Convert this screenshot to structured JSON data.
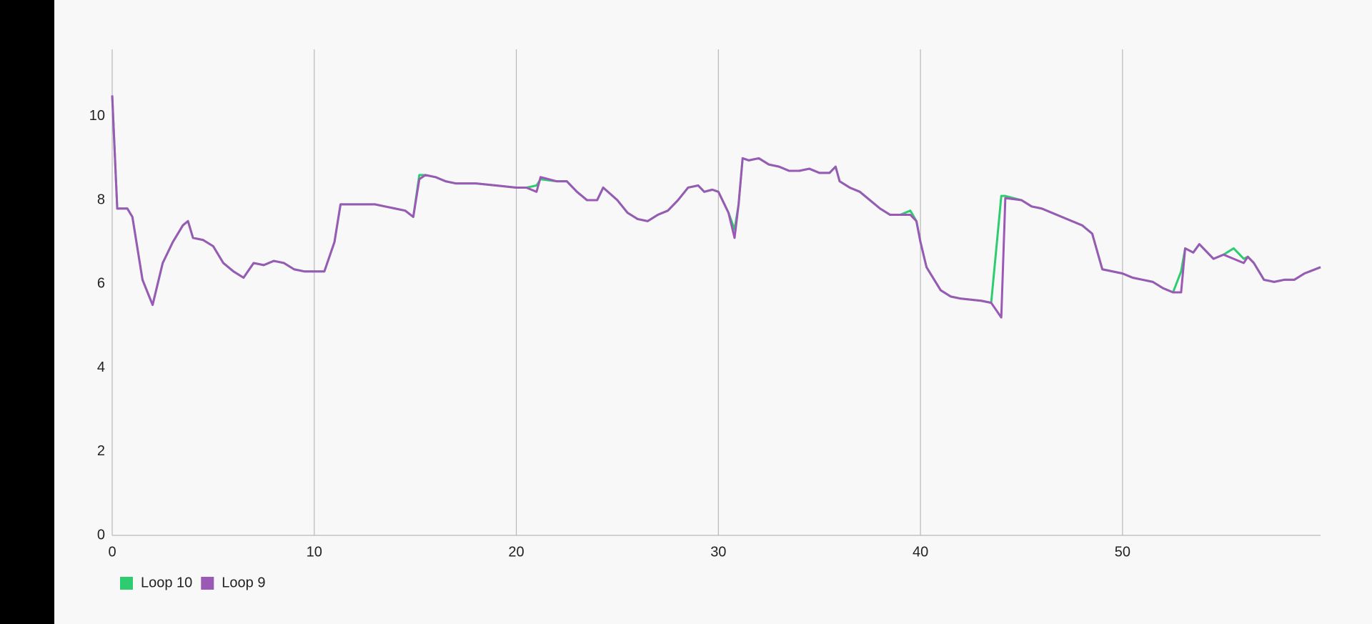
{
  "chart_data": {
    "type": "line",
    "x": [
      0,
      0.25,
      0.5,
      0.75,
      1,
      1.5,
      2,
      2.5,
      3,
      3.5,
      3.75,
      4,
      4.5,
      5,
      5.5,
      6,
      6.5,
      7,
      7.5,
      8,
      8.5,
      9,
      9.5,
      10,
      10.5,
      11,
      11.3,
      12,
      13,
      13.5,
      14,
      14.5,
      14.9,
      15.2,
      15.5,
      16,
      16.5,
      17,
      18,
      19,
      20,
      20.5,
      21,
      21.2,
      22,
      22.5,
      23,
      23.5,
      24,
      24.3,
      25,
      25.5,
      26,
      26.5,
      27,
      27.5,
      28,
      28.5,
      29,
      29.3,
      29.7,
      30,
      30.5,
      30.8,
      31,
      31.2,
      31.5,
      32,
      32.5,
      33,
      33.5,
      34,
      34.5,
      35,
      35.5,
      35.8,
      36,
      36.5,
      37,
      37.5,
      38,
      38.5,
      39,
      39.5,
      39.8,
      40,
      40.3,
      41,
      41.5,
      42,
      43,
      43.5,
      44,
      44.2,
      45,
      45.5,
      46,
      46.5,
      47,
      47.5,
      48,
      48.5,
      49,
      50,
      50.5,
      51,
      51.5,
      52,
      52.5,
      52.9,
      53.1,
      53.5,
      53.8,
      54.5,
      55,
      55.5,
      56,
      56.2,
      56.5,
      57,
      57.5,
      58,
      58.5,
      59,
      59.8
    ],
    "series": [
      {
        "name": "Loop 10",
        "color": "#2ecc71",
        "values": [
          10.5,
          7.8,
          7.8,
          7.8,
          7.6,
          6.1,
          5.5,
          6.5,
          7.0,
          7.4,
          7.5,
          7.1,
          7.05,
          6.9,
          6.5,
          6.3,
          6.15,
          6.5,
          6.45,
          6.55,
          6.5,
          6.35,
          6.3,
          6.3,
          6.3,
          7.0,
          7.9,
          7.9,
          7.9,
          7.85,
          7.8,
          7.75,
          7.6,
          8.6,
          8.6,
          8.55,
          8.45,
          8.4,
          8.4,
          8.35,
          8.3,
          8.3,
          8.35,
          8.5,
          8.45,
          8.45,
          8.2,
          8.0,
          8.0,
          8.3,
          8.0,
          7.7,
          7.55,
          7.5,
          7.65,
          7.75,
          8.0,
          8.3,
          8.35,
          8.2,
          8.25,
          8.2,
          7.7,
          7.3,
          7.9,
          9.0,
          8.95,
          9.0,
          8.85,
          8.8,
          8.7,
          8.7,
          8.75,
          8.65,
          8.65,
          8.8,
          8.45,
          8.3,
          8.2,
          8.0,
          7.8,
          7.65,
          7.65,
          7.75,
          7.5,
          7.0,
          6.4,
          5.85,
          5.7,
          5.65,
          5.6,
          5.55,
          8.1,
          8.1,
          8.0,
          7.85,
          7.8,
          7.7,
          7.6,
          7.5,
          7.4,
          7.2,
          6.35,
          6.25,
          6.15,
          6.1,
          6.05,
          5.9,
          5.8,
          6.3,
          6.85,
          6.75,
          6.95,
          6.6,
          6.7,
          6.85,
          6.6,
          6.65,
          6.5,
          6.1,
          6.05,
          6.1,
          6.1,
          6.25,
          6.4
        ]
      },
      {
        "name": "Loop 9",
        "color": "#9b59b6",
        "values": [
          10.5,
          7.8,
          7.8,
          7.8,
          7.6,
          6.1,
          5.5,
          6.5,
          7.0,
          7.4,
          7.5,
          7.1,
          7.05,
          6.9,
          6.5,
          6.3,
          6.15,
          6.5,
          6.45,
          6.55,
          6.5,
          6.35,
          6.3,
          6.3,
          6.3,
          7.0,
          7.9,
          7.9,
          7.9,
          7.85,
          7.8,
          7.75,
          7.6,
          8.5,
          8.6,
          8.55,
          8.45,
          8.4,
          8.4,
          8.35,
          8.3,
          8.3,
          8.2,
          8.55,
          8.45,
          8.45,
          8.2,
          8.0,
          8.0,
          8.3,
          8.0,
          7.7,
          7.55,
          7.5,
          7.65,
          7.75,
          8.0,
          8.3,
          8.35,
          8.2,
          8.25,
          8.2,
          7.7,
          7.1,
          7.9,
          9.0,
          8.95,
          9.0,
          8.85,
          8.8,
          8.7,
          8.7,
          8.75,
          8.65,
          8.65,
          8.8,
          8.45,
          8.3,
          8.2,
          8.0,
          7.8,
          7.65,
          7.65,
          7.65,
          7.5,
          7.0,
          6.4,
          5.85,
          5.7,
          5.65,
          5.6,
          5.55,
          5.2,
          8.05,
          8.0,
          7.85,
          7.8,
          7.7,
          7.6,
          7.5,
          7.4,
          7.2,
          6.35,
          6.25,
          6.15,
          6.1,
          6.05,
          5.9,
          5.8,
          5.8,
          6.85,
          6.75,
          6.95,
          6.6,
          6.7,
          6.6,
          6.5,
          6.65,
          6.5,
          6.1,
          6.05,
          6.1,
          6.1,
          6.25,
          6.4
        ]
      }
    ],
    "xlim": [
      0,
      59.8
    ],
    "xticks": [
      0,
      10,
      20,
      30,
      40,
      50
    ],
    "ylim": [
      0,
      11.6
    ],
    "yticks": [
      0,
      2,
      4,
      6,
      8,
      10
    ],
    "grid": "x",
    "legend": "bottom-left"
  }
}
